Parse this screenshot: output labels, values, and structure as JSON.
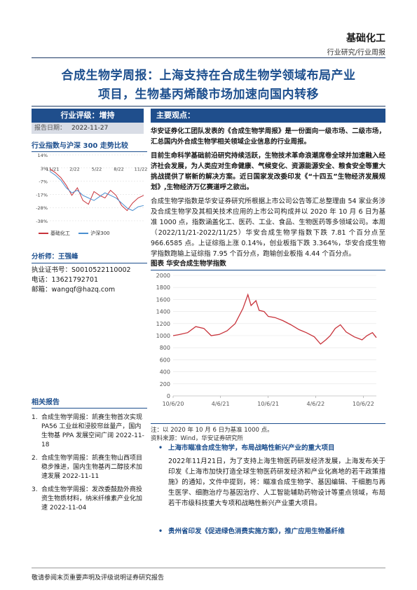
{
  "header": {
    "sector": "基础化工",
    "category": "行业研究/行业周报"
  },
  "title": {
    "line1": "合成生物学周报：上海支持在合成生物学领域布局产业",
    "line2": "项目，生物基丙烯酸市场加速向国内转移"
  },
  "rating": {
    "label": "行业评级：增持",
    "date_label": "报告日期：",
    "date": "2022-11-27"
  },
  "main_view_label": "主要观点：",
  "side_chart": {
    "title": "行业指数与沪深 300 走势比较",
    "y_ticks": [
      "14%",
      "3%",
      "-7%",
      "-17%",
      "-28%",
      "-38%"
    ],
    "x_ticks": [
      "11/21",
      "2/22",
      "5/22",
      "8/22",
      "11/22"
    ],
    "legend": [
      "基础化工",
      "沪深300"
    ],
    "colors": {
      "series1": "#c8333b",
      "series2": "#4a8fd0"
    }
  },
  "analyst": {
    "name_label": "分析师：王强峰",
    "cert": "执业证书号：S0010522110002",
    "phone": "电话：13621792701",
    "email": "邮箱：wangqf@hazq.com"
  },
  "related": {
    "title": "相关报告",
    "items": [
      {
        "num": "1.",
        "text": "合成生物学周报：凯赛生物首次实现 PA56 工业丝和浸胶帘丝量产，国内生物基 PPA 发展空间广阔 2022-11-18"
      },
      {
        "num": "2.",
        "text": "合成生物学周报：凯赛生物山西项目稳步推进，国内生物基丙二醇技术加速发展 2022-11-11"
      },
      {
        "num": "3.",
        "text": "合成生物学周报：发改委鼓励外商投资生物质材料，纳米纤维素产业化加速 2022-11-04"
      }
    ]
  },
  "body": {
    "p1": "华安证券化工团队发表的《合成生物学周报》是一份面向一级市场、二级市场，汇总国内外合成生物学相关领域企业信息的行业周报。",
    "p2": "目前生命科学基础前沿研究持续活跃，生物技术革命浪潮席卷全球并加速融入经济社会发展，为人类应对生命健康、气候变化、资源能源安全、粮食安全等重大挑战提供了崭新的解决方案。近日国家发改委印发《“十四五”生物经济发展规划》,生物经济万亿赛道呼之欲出。",
    "p3": "合成生物学指数是华安证券研究所根据上市公司公告等汇总整理由 54 家业务涉及合成生物学及其相关技术应用的上市公司构成并以 2020 年 10 月 6 日为基准 1000 点，指数涵盖化工、医药、工业、食品、生物医药等多领域公司。本周（2022/11/21-2022/11/25）华安合成生物学指数下跌 7.81 个百分点至 966.6585 点。上证综指上涨 0.14%，创业板指下跌 3.364%，华安合成生物学指数跑输上证综指 7.95 个百分点，跑输创业板指 4.44 个百分点。"
  },
  "figure": {
    "title": "图表 华安合成生物学指数",
    "note1": "注：以 2020 年 10 月 6 日为基准 1000 点。",
    "note2": "资料来源：Wind，华安证券研究所"
  },
  "chart_data": {
    "type": "line",
    "title": "华安合成生物学指数",
    "x_ticks": [
      "10/6/20",
      "4/6/21",
      "10/6/21",
      "4/6/22",
      "10/6/22"
    ],
    "y_ticks": [
      0,
      200,
      400,
      600,
      800,
      1000,
      1200,
      1400,
      1600,
      1800,
      2000
    ],
    "ylim": [
      0,
      2000
    ],
    "grid": "horizontal",
    "color": "#c8333b",
    "x": [
      "2020-10-06",
      "2020-11-01",
      "2020-12-01",
      "2021-01-01",
      "2021-02-01",
      "2021-03-01",
      "2021-04-01",
      "2021-05-01",
      "2021-06-01",
      "2021-07-01",
      "2021-07-20",
      "2021-08-01",
      "2021-08-20",
      "2021-09-01",
      "2021-09-20",
      "2021-10-06",
      "2021-11-01",
      "2021-12-01",
      "2022-01-01",
      "2022-02-01",
      "2022-03-01",
      "2022-04-01",
      "2022-04-25",
      "2022-05-15",
      "2022-06-01",
      "2022-06-20",
      "2022-07-10",
      "2022-08-01",
      "2022-09-01",
      "2022-10-01",
      "2022-10-20",
      "2022-11-10",
      "2022-11-25"
    ],
    "values": [
      1000,
      1020,
      1050,
      1150,
      1120,
      1000,
      1020,
      1080,
      1200,
      1450,
      1680,
      1500,
      1580,
      1420,
      1400,
      1320,
      1300,
      1250,
      1180,
      1100,
      1050,
      980,
      860,
      930,
      1000,
      1120,
      1180,
      1060,
      980,
      930,
      1000,
      1050,
      967
    ]
  },
  "news": [
    {
      "head": "上海市瞄准合成生物学，布局战略性新兴产业的重大项目",
      "body": "2022年11月21日，为了支持上海生物医药研发经济发展，上海发布关于印发《上海市加快打造全球生物医药研发经济和产业化高地的若干政策措施》的通知，文件中提到，将：瞄准合成生物学、基因编辑、干细胞与再生医学、细胞治疗与基因治疗、人工智能辅助药物设计等重点领域，布局若干市级科技重大专项和战略性新兴产业重大项目。"
    },
    {
      "head": "贵州省印发《促进绿色消费实施方案》，推广应用生物基纤维",
      "body": ""
    }
  ],
  "footer": "敬请参阅末页重要声明及评级说明证券研究报告"
}
